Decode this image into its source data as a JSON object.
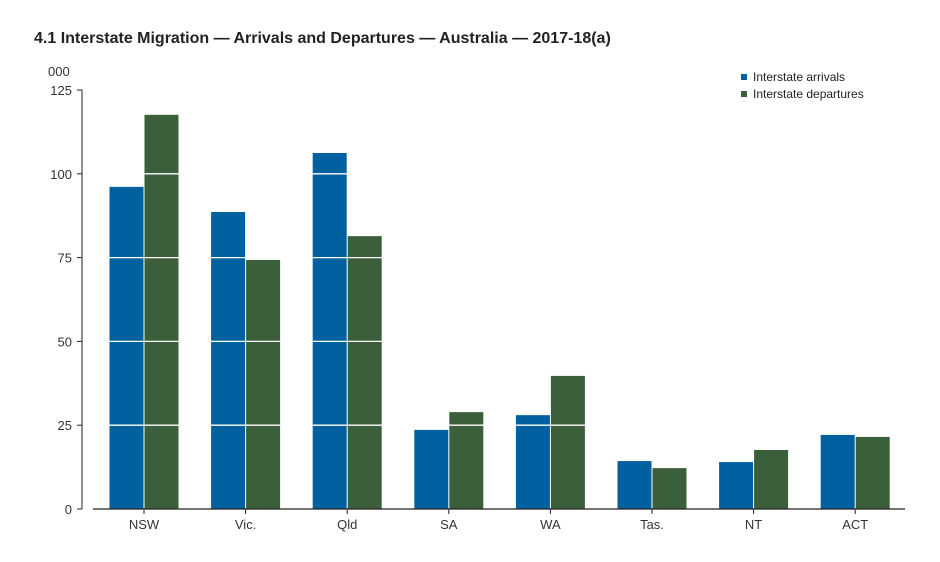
{
  "chart_data": {
    "type": "bar",
    "title": "4.1 Interstate Migration — Arrivals and Departures — Australia — 2017-18(a)",
    "ylabel": "000",
    "ylim": [
      0,
      125
    ],
    "yticks": [
      0,
      25,
      50,
      75,
      100,
      125
    ],
    "grid": true,
    "legend_position": "top-right",
    "categories": [
      "NSW",
      "Vic.",
      "Qld",
      "SA",
      "WA",
      "Tas.",
      "NT",
      "ACT"
    ],
    "series": [
      {
        "name": "Interstate arrivals",
        "color": "#0060a0",
        "values": [
          96.1,
          88.6,
          106.2,
          23.6,
          28.0,
          14.3,
          14.0,
          22.1
        ]
      },
      {
        "name": "Interstate departures",
        "color": "#3a5f3a",
        "values": [
          117.6,
          74.3,
          81.4,
          28.9,
          39.7,
          12.2,
          17.6,
          21.5
        ]
      }
    ]
  }
}
